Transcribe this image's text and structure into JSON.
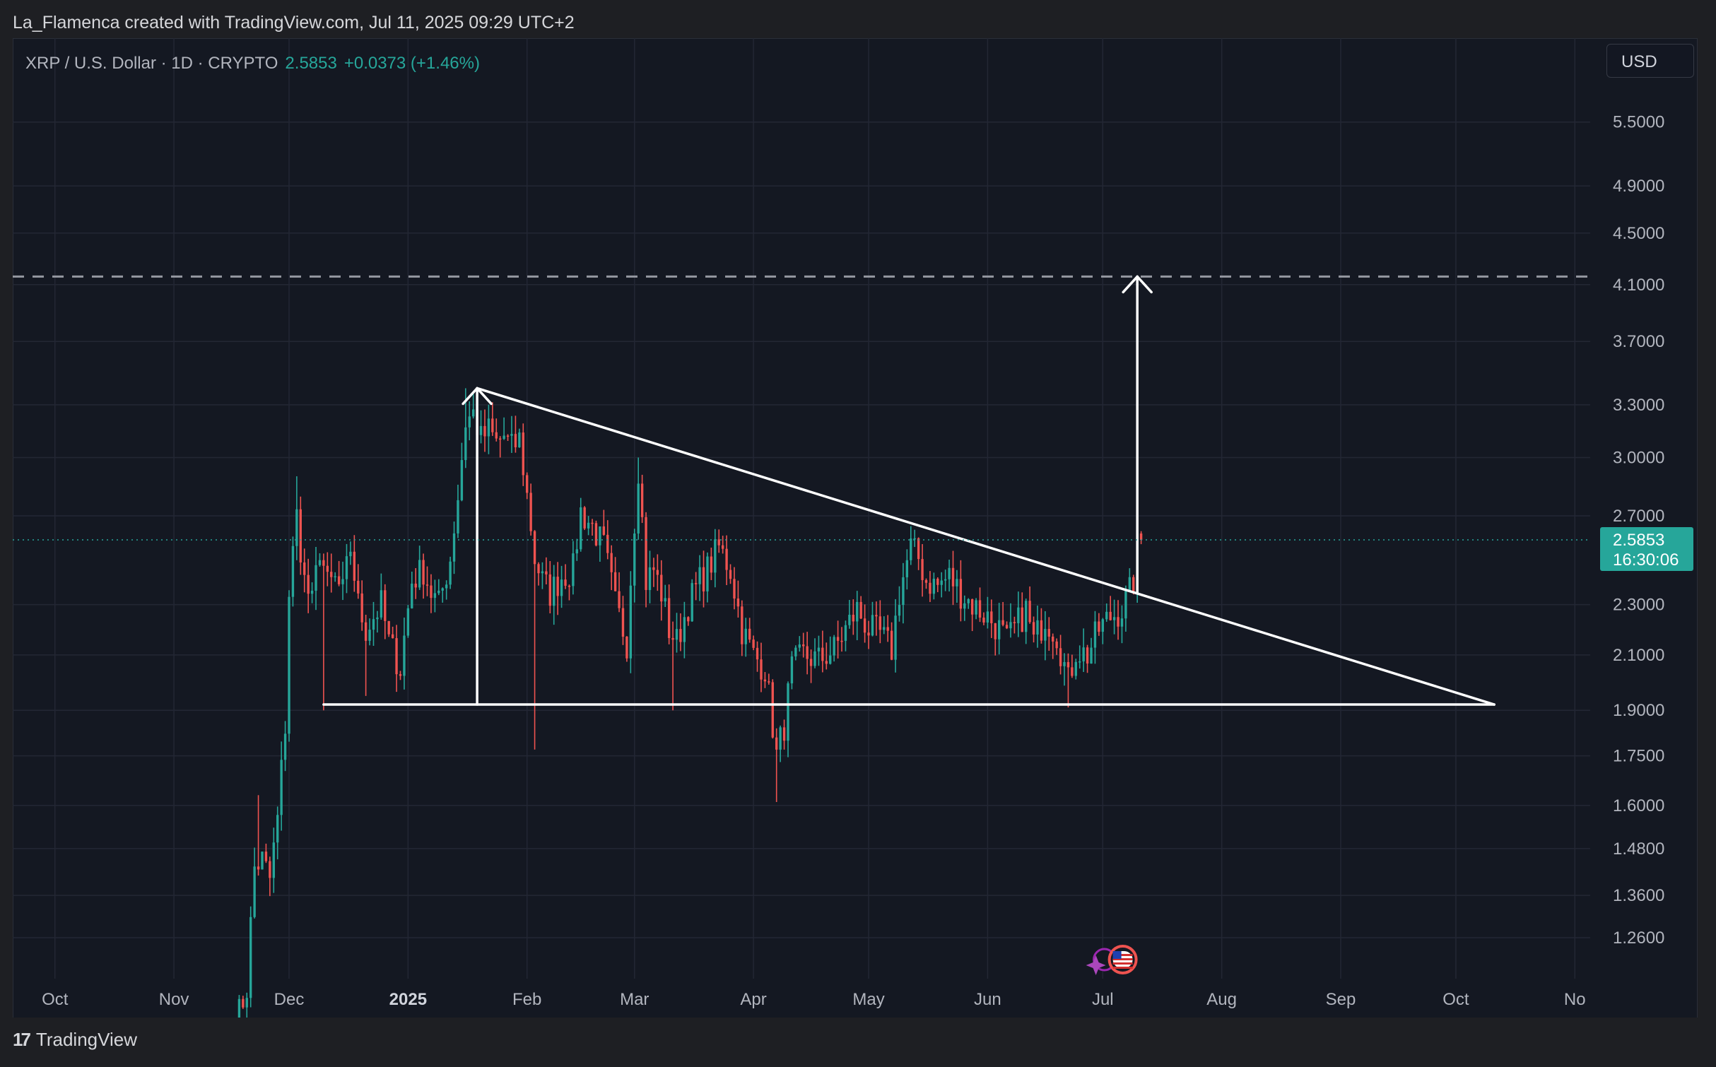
{
  "header": {
    "credit": "La_Flamenca created with TradingView.com, Jul 11, 2025 09:29 UTC+2"
  },
  "symbol_bar": {
    "name": "XRP / U.S. Dollar · 1D · CRYPTO",
    "price": "2.5853",
    "change": "+0.0373 (+1.46%)"
  },
  "currency_button": "USD",
  "price_tag": {
    "price": "2.5853",
    "countdown": "16:30:06"
  },
  "footer": {
    "brand": "TradingView",
    "brand_mark": "17"
  },
  "colors": {
    "up": "#26a69a",
    "down": "#ef5350",
    "background": "#141822",
    "grid": "#232734",
    "drawing": "#ffffff"
  },
  "icons": [
    "tradingview-logo-icon",
    "usd-flag-event-icon",
    "sparkle-event-icon"
  ],
  "chart_data": {
    "type": "candlestick",
    "symbol": "XRP / U.S. Dollar",
    "timeframe": "1D",
    "y_scale": "log",
    "ylim": [
      1.17,
      6.4
    ],
    "x_range": [
      "2024-09-20",
      "2025-11-05"
    ],
    "y_ticks": [
      "5.5000",
      "4.9000",
      "4.5000",
      "4.1000",
      "3.7000",
      "3.3000",
      "3.0000",
      "2.7000",
      "2.3000",
      "2.1000",
      "1.9000",
      "1.7500",
      "1.6000",
      "1.4800",
      "1.3600",
      "1.2600"
    ],
    "x_ticks": [
      {
        "label": "Oct",
        "date": "2024-10-01",
        "bold": false
      },
      {
        "label": "Nov",
        "date": "2024-11-01",
        "bold": false
      },
      {
        "label": "Dec",
        "date": "2024-12-01",
        "bold": false
      },
      {
        "label": "2025",
        "date": "2025-01-01",
        "bold": true
      },
      {
        "label": "Feb",
        "date": "2025-02-01",
        "bold": false
      },
      {
        "label": "Mar",
        "date": "2025-03-01",
        "bold": false
      },
      {
        "label": "Apr",
        "date": "2025-04-01",
        "bold": false
      },
      {
        "label": "May",
        "date": "2025-05-01",
        "bold": false
      },
      {
        "label": "Jun",
        "date": "2025-06-01",
        "bold": false
      },
      {
        "label": "Jul",
        "date": "2025-07-01",
        "bold": false
      },
      {
        "label": "Aug",
        "date": "2025-08-01",
        "bold": false
      },
      {
        "label": "Sep",
        "date": "2025-09-01",
        "bold": false
      },
      {
        "label": "Oct",
        "date": "2025-10-01",
        "bold": false
      },
      {
        "label": "No",
        "date": "2025-11-01",
        "bold": false
      }
    ],
    "close_anchors": [
      [
        "2024-11-16",
        1.05
      ],
      [
        "2024-11-20",
        1.15
      ],
      [
        "2024-11-22",
        1.43
      ],
      [
        "2024-11-24",
        1.45
      ],
      [
        "2024-11-26",
        1.4
      ],
      [
        "2024-11-28",
        1.56
      ],
      [
        "2024-11-30",
        1.85
      ],
      [
        "2024-12-01",
        2.35
      ],
      [
        "2024-12-03",
        2.7
      ],
      [
        "2024-12-05",
        2.4
      ],
      [
        "2024-12-07",
        2.3
      ],
      [
        "2024-12-09",
        2.55
      ],
      [
        "2024-12-11",
        2.38
      ],
      [
        "2024-12-13",
        2.4
      ],
      [
        "2024-12-15",
        2.35
      ],
      [
        "2024-12-17",
        2.55
      ],
      [
        "2024-12-19",
        2.3
      ],
      [
        "2024-12-21",
        2.2
      ],
      [
        "2024-12-23",
        2.25
      ],
      [
        "2024-12-25",
        2.3
      ],
      [
        "2024-12-27",
        2.15
      ],
      [
        "2024-12-30",
        2.05
      ],
      [
        "2025-01-02",
        2.4
      ],
      [
        "2025-01-05",
        2.45
      ],
      [
        "2025-01-07",
        2.35
      ],
      [
        "2025-01-09",
        2.3
      ],
      [
        "2025-01-12",
        2.5
      ],
      [
        "2025-01-14",
        2.8
      ],
      [
        "2025-01-16",
        3.2
      ],
      [
        "2025-01-18",
        3.25
      ],
      [
        "2025-01-20",
        3.1
      ],
      [
        "2025-01-22",
        3.15
      ],
      [
        "2025-01-24",
        3.08
      ],
      [
        "2025-01-26",
        3.12
      ],
      [
        "2025-01-28",
        3.05
      ],
      [
        "2025-01-30",
        3.1
      ],
      [
        "2025-02-01",
        2.8
      ],
      [
        "2025-02-03",
        2.5
      ],
      [
        "2025-02-05",
        2.4
      ],
      [
        "2025-02-07",
        2.35
      ],
      [
        "2025-02-10",
        2.42
      ],
      [
        "2025-02-13",
        2.45
      ],
      [
        "2025-02-15",
        2.72
      ],
      [
        "2025-02-18",
        2.65
      ],
      [
        "2025-02-21",
        2.55
      ],
      [
        "2025-02-24",
        2.3
      ],
      [
        "2025-02-27",
        2.15
      ],
      [
        "2025-03-02",
        2.95
      ],
      [
        "2025-03-04",
        2.4
      ],
      [
        "2025-03-06",
        2.45
      ],
      [
        "2025-03-08",
        2.35
      ],
      [
        "2025-03-10",
        2.2
      ],
      [
        "2025-03-12",
        2.15
      ],
      [
        "2025-03-15",
        2.3
      ],
      [
        "2025-03-18",
        2.4
      ],
      [
        "2025-03-20",
        2.45
      ],
      [
        "2025-03-23",
        2.55
      ],
      [
        "2025-03-26",
        2.45
      ],
      [
        "2025-03-29",
        2.2
      ],
      [
        "2025-04-01",
        2.1
      ],
      [
        "2025-04-04",
        2.05
      ],
      [
        "2025-04-07",
        1.75
      ],
      [
        "2025-04-09",
        1.85
      ],
      [
        "2025-04-11",
        2.05
      ],
      [
        "2025-04-14",
        2.1
      ],
      [
        "2025-04-18",
        2.08
      ],
      [
        "2025-04-22",
        2.12
      ],
      [
        "2025-04-25",
        2.2
      ],
      [
        "2025-04-28",
        2.28
      ],
      [
        "2025-05-01",
        2.2
      ],
      [
        "2025-05-04",
        2.18
      ],
      [
        "2025-05-07",
        2.12
      ],
      [
        "2025-05-09",
        2.35
      ],
      [
        "2025-05-12",
        2.55
      ],
      [
        "2025-05-14",
        2.5
      ],
      [
        "2025-05-16",
        2.4
      ],
      [
        "2025-05-19",
        2.38
      ],
      [
        "2025-05-22",
        2.42
      ],
      [
        "2025-05-25",
        2.35
      ],
      [
        "2025-05-28",
        2.3
      ],
      [
        "2025-06-01",
        2.25
      ],
      [
        "2025-06-04",
        2.2
      ],
      [
        "2025-06-06",
        2.15
      ],
      [
        "2025-06-08",
        2.2
      ],
      [
        "2025-06-11",
        2.28
      ],
      [
        "2025-06-13",
        2.15
      ],
      [
        "2025-06-16",
        2.25
      ],
      [
        "2025-06-19",
        2.18
      ],
      [
        "2025-06-22",
        2.0
      ],
      [
        "2025-06-24",
        2.12
      ],
      [
        "2025-06-27",
        2.1
      ],
      [
        "2025-06-30",
        2.2
      ],
      [
        "2025-07-03",
        2.25
      ],
      [
        "2025-07-06",
        2.28
      ],
      [
        "2025-07-08",
        2.35
      ],
      [
        "2025-07-09",
        2.4
      ],
      [
        "2025-07-10",
        2.55
      ],
      [
        "2025-07-11",
        2.5853
      ]
    ],
    "wick_extremes": [
      [
        "2024-11-23",
        "high",
        1.63
      ],
      [
        "2024-12-03",
        "high",
        2.9
      ],
      [
        "2024-12-10",
        "low",
        1.9
      ],
      [
        "2024-12-21",
        "low",
        1.95
      ],
      [
        "2025-01-16",
        "high",
        3.4
      ],
      [
        "2025-02-03",
        "low",
        1.77
      ],
      [
        "2025-03-02",
        "high",
        3.0
      ],
      [
        "2025-03-11",
        "low",
        1.9
      ],
      [
        "2025-04-07",
        "low",
        1.61
      ],
      [
        "2025-05-12",
        "high",
        2.65
      ],
      [
        "2025-06-22",
        "low",
        1.91
      ]
    ],
    "drawings": {
      "descending_trendline": {
        "from": [
          "2025-01-19",
          3.4
        ],
        "to": [
          "2025-10-11",
          1.92
        ]
      },
      "horizontal_support": {
        "from": [
          "2024-12-10",
          1.92
        ],
        "to": [
          "2025-10-11",
          1.92
        ],
        "value": 1.92
      },
      "pattern_height_arrow": {
        "date": "2025-01-19",
        "from": 1.92,
        "to": 3.4
      },
      "target_arrow": {
        "date": "2025-07-10",
        "from": 2.35,
        "to": 4.16
      },
      "target_level_dashed": 4.16
    },
    "last_price": 2.5853
  }
}
